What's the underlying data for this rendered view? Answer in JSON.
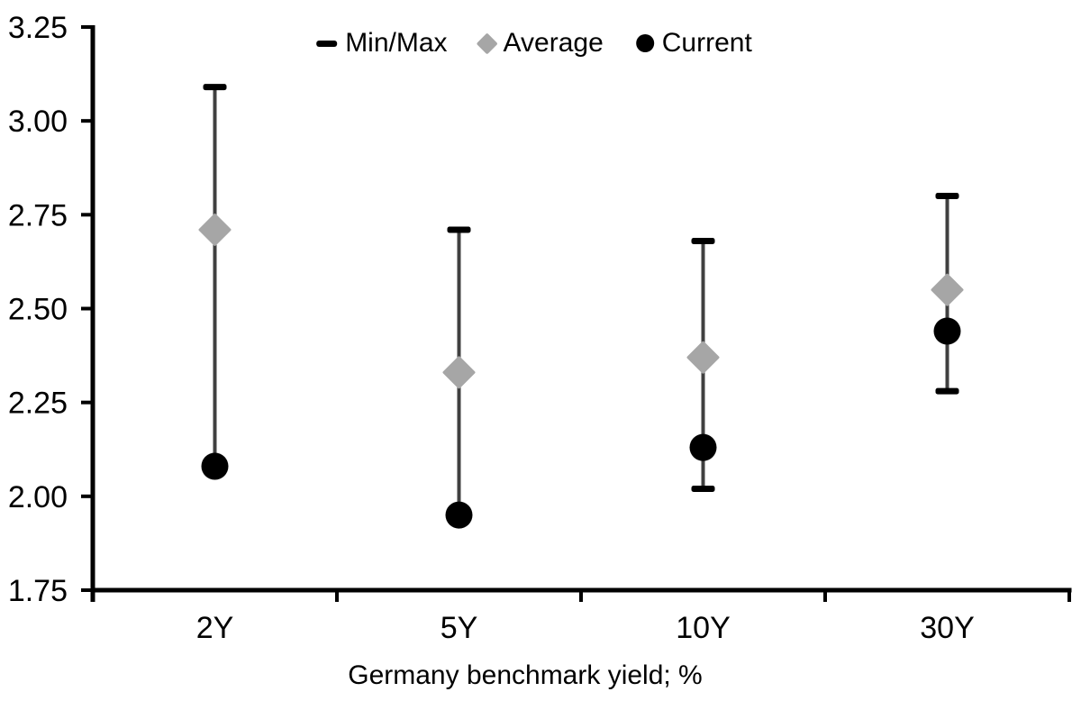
{
  "chart_data": {
    "type": "scatter",
    "subtype": "min-max-range",
    "title": "",
    "xlabel": "Germany benchmark yield; %",
    "ylabel": "",
    "categories": [
      "2Y",
      "5Y",
      "10Y",
      "30Y"
    ],
    "series": [
      {
        "name": "Min/Max",
        "marker": "dash"
      },
      {
        "name": "Average",
        "marker": "diamond"
      },
      {
        "name": "Current",
        "marker": "circle"
      }
    ],
    "points": [
      {
        "category": "2Y",
        "max": 3.09,
        "min": 2.08,
        "min_cap_visible": false,
        "average": 2.71,
        "current": 2.08
      },
      {
        "category": "5Y",
        "max": 2.71,
        "min": 1.95,
        "min_cap_visible": false,
        "average": 2.33,
        "current": 1.95
      },
      {
        "category": "10Y",
        "max": 2.68,
        "min": 2.02,
        "min_cap_visible": true,
        "average": 2.37,
        "current": 2.13
      },
      {
        "category": "30Y",
        "max": 2.8,
        "min": 2.28,
        "min_cap_visible": true,
        "average": 2.55,
        "current": 2.44
      }
    ],
    "ylim": [
      1.75,
      3.25
    ],
    "ytick_step": 0.25,
    "ytick_labels": [
      "1.75",
      "2.00",
      "2.25",
      "2.50",
      "2.75",
      "3.00",
      "3.25"
    ],
    "grid": false,
    "legend_position": "top-center",
    "colors": {
      "axis": "#000000",
      "text": "#000000",
      "range_line": "#404040",
      "cap": "#000000",
      "average": "#a6a6a6",
      "current": "#000000",
      "background": "#ffffff"
    }
  }
}
